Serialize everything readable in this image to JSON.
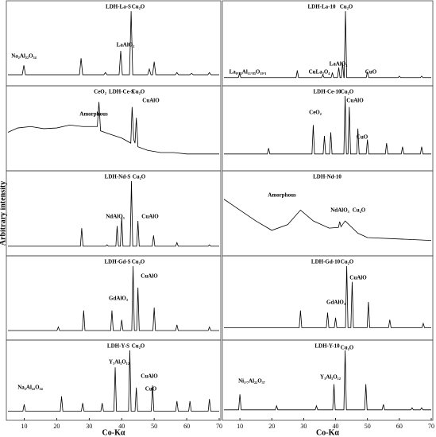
{
  "chart_data": [
    {
      "type": "line",
      "color": "#000000",
      "xlim": [
        5,
        70
      ],
      "ylim": [
        0,
        100
      ],
      "annotations": [
        "Na₂Al₂₂O₃₄",
        "LDH-La-S",
        "Cu₂O",
        "LaAlO₃"
      ],
      "x": [
        5,
        9.4,
        9.9,
        10.4,
        27,
        27.5,
        28,
        34.5,
        35,
        35.5,
        39.2,
        39.7,
        40.2,
        42.4,
        42.9,
        43.4,
        48,
        48.5,
        49,
        49.5,
        50,
        50.5,
        56.5,
        57,
        57.5,
        61,
        61.5,
        62,
        66.5,
        67,
        67.5,
        70
      ],
      "values": [
        12,
        12,
        25,
        12,
        12,
        35,
        12,
        12,
        15,
        12,
        12,
        45,
        12,
        12,
        100,
        12,
        12,
        20,
        12,
        12,
        30,
        12,
        12,
        15,
        12,
        12,
        14,
        12,
        12,
        15,
        12,
        12
      ]
    },
    {
      "type": "line",
      "color": "#000000",
      "xlim": [
        5,
        70
      ],
      "ylim": [
        0,
        100
      ],
      "annotations": [
        "LDH-La-10",
        "Cu₂O",
        "LaAlO₃",
        "La₀.₈₅Al₁₁.₈₅O₁₉.₁",
        "CuLa₂O₄",
        "CuO"
      ],
      "x": [
        5,
        9.5,
        9.9,
        10.3,
        27.6,
        28,
        28.4,
        35.6,
        36,
        36.4,
        38.6,
        39,
        39.4,
        40.6,
        41,
        41.4,
        41.8,
        42.2,
        42.6,
        42.7,
        43.1,
        43.5,
        49.6,
        50,
        50.4,
        59.6,
        60,
        60.4,
        66.6,
        67,
        67.4,
        70
      ],
      "values": [
        8,
        8,
        14,
        8,
        8,
        18,
        8,
        8,
        12,
        8,
        8,
        15,
        8,
        8,
        22,
        8,
        8,
        28,
        8,
        8,
        100,
        8,
        8,
        16,
        8,
        8,
        10,
        8,
        8,
        10,
        8,
        8
      ]
    },
    {
      "type": "line",
      "color": "#000000",
      "xlim": [
        5,
        70
      ],
      "ylim": [
        0,
        100
      ],
      "annotations": [
        "CeO₂",
        "LDH-Ce-S",
        "Cu₂O",
        "CuAlO",
        "Amorphous"
      ],
      "x": [
        5,
        8,
        12,
        16,
        20,
        24,
        28,
        32.5,
        33,
        33.5,
        36,
        40,
        42.8,
        43.2,
        43.7,
        44.1,
        44.5,
        45,
        48,
        52,
        56,
        60,
        65,
        70
      ],
      "values": [
        50,
        56,
        58,
        55,
        56,
        60,
        58,
        58,
        92,
        52,
        48,
        42,
        35,
        85,
        40,
        35,
        70,
        30,
        25,
        22,
        22,
        20,
        20,
        20
      ]
    },
    {
      "type": "line",
      "color": "#000000",
      "xlim": [
        5,
        70
      ],
      "ylim": [
        0,
        100
      ],
      "annotations": [
        "LDH-Ce-10",
        "Cu₂O",
        "CuAlO",
        "CeO₂",
        "CuO"
      ],
      "x": [
        5,
        18.6,
        19,
        19.4,
        32.6,
        33,
        33.4,
        36.1,
        36.5,
        36.9,
        38.1,
        38.5,
        38.9,
        42.6,
        43,
        43.4,
        43.9,
        44.3,
        44.7,
        46.6,
        47,
        47.4,
        49.6,
        50,
        50.4,
        55.6,
        56,
        56.4,
        60.6,
        61,
        61.4,
        66.6,
        67,
        67.4,
        70
      ],
      "values": [
        20,
        20,
        28,
        20,
        20,
        60,
        20,
        20,
        45,
        20,
        20,
        50,
        20,
        20,
        100,
        20,
        20,
        85,
        20,
        20,
        55,
        20,
        20,
        40,
        20,
        20,
        35,
        20,
        20,
        30,
        20,
        20,
        30,
        20,
        20
      ]
    },
    {
      "type": "line",
      "color": "#000000",
      "xlim": [
        5,
        70
      ],
      "ylim": [
        0,
        100
      ],
      "ylabel": "Arbitrary intensity",
      "annotations": [
        "LDH-Nd-S",
        "Cu₂O",
        "NdAlO₃",
        "CuAlO"
      ],
      "x": [
        5,
        27.3,
        27.7,
        28.1,
        35.1,
        35.5,
        35.9,
        38.2,
        38.6,
        39,
        39.6,
        40,
        40.4,
        42.6,
        43,
        43.4,
        44.6,
        45,
        45.4,
        49.4,
        49.8,
        50.2,
        56.6,
        57,
        57.4,
        66.6,
        67,
        67.4,
        70
      ],
      "values": [
        10,
        10,
        35,
        10,
        10,
        12,
        10,
        10,
        38,
        10,
        10,
        50,
        10,
        10,
        100,
        10,
        10,
        45,
        10,
        10,
        25,
        10,
        10,
        15,
        10,
        10,
        12,
        10,
        10
      ]
    },
    {
      "type": "line",
      "color": "#000000",
      "xlim": [
        5,
        70
      ],
      "ylim": [
        0,
        100
      ],
      "annotations": [
        "LDH-Nd-10",
        "Amorphous",
        "NdAlO₃",
        "Cu₂O"
      ],
      "x": [
        5,
        10,
        15,
        20,
        25,
        29,
        33,
        38,
        40.9,
        41.3,
        41.7,
        43,
        47,
        50,
        60,
        70
      ],
      "values": [
        75,
        60,
        45,
        32,
        40,
        60,
        45,
        35,
        36,
        44,
        37,
        45,
        28,
        22,
        20,
        18
      ]
    },
    {
      "type": "line",
      "color": "#000000",
      "xlim": [
        5,
        70
      ],
      "ylim": [
        0,
        100
      ],
      "annotations": [
        "LDH-Gd-S",
        "Cu₂O",
        "CuAlO",
        "GdAlO₃"
      ],
      "x": [
        5,
        20.1,
        20.5,
        20.9,
        27.9,
        28.3,
        28.7,
        36.6,
        37,
        37.4,
        39.6,
        40,
        40.4,
        43.1,
        43.5,
        43.9,
        44.6,
        45,
        45.4,
        49.6,
        50,
        50.4,
        56.6,
        57,
        57.4,
        66.6,
        67,
        67.4,
        70
      ],
      "values": [
        10,
        10,
        15,
        10,
        10,
        38,
        10,
        10,
        38,
        10,
        10,
        25,
        10,
        10,
        100,
        10,
        10,
        70,
        10,
        10,
        42,
        10,
        10,
        18,
        10,
        10,
        15,
        10,
        10
      ]
    },
    {
      "type": "line",
      "color": "#000000",
      "xlim": [
        5,
        70
      ],
      "ylim": [
        0,
        100
      ],
      "annotations": [
        "LDH-Gd-10",
        "Cu₂O",
        "CuAlO",
        "GdAlO₃"
      ],
      "x": [
        5,
        28.6,
        29,
        29.4,
        37.1,
        37.5,
        37.9,
        39.6,
        40,
        40.4,
        43.1,
        43.5,
        43.9,
        44.8,
        45.2,
        45.6,
        49.9,
        50.3,
        50.7,
        56.6,
        57,
        57.4,
        67.1,
        67.5,
        67.9,
        70
      ],
      "values": [
        14,
        14,
        38,
        14,
        14,
        35,
        14,
        14,
        28,
        14,
        14,
        100,
        14,
        14,
        78,
        14,
        14,
        50,
        14,
        14,
        25,
        14,
        14,
        20,
        14,
        14
      ]
    },
    {
      "type": "line",
      "color": "#000000",
      "xlim": [
        5,
        70
      ],
      "ylim": [
        0,
        100
      ],
      "xlabel": "Co-Kα",
      "xticks": [
        10,
        20,
        30,
        40,
        50,
        60,
        70
      ],
      "annotations": [
        "LDH-Y-S",
        "Cu₂O",
        "Y₃Al₅O₁₂",
        "CuAlO",
        "CuO",
        "Na₂Al₂₂O₃₄"
      ],
      "x": [
        5,
        9.6,
        10,
        10.4,
        21.1,
        21.5,
        21.9,
        27.6,
        28,
        28.4,
        33.6,
        34,
        34.4,
        37.6,
        38,
        38.4,
        42.1,
        42.5,
        42.9,
        44.1,
        44.5,
        44.9,
        49.1,
        49.5,
        49.9,
        56.6,
        57,
        57.4,
        60.6,
        61,
        61.4,
        66.6,
        67,
        67.4,
        70
      ],
      "values": [
        10,
        10,
        20,
        10,
        10,
        32,
        10,
        10,
        22,
        10,
        10,
        22,
        10,
        10,
        75,
        10,
        10,
        100,
        10,
        10,
        45,
        10,
        10,
        48,
        10,
        10,
        25,
        10,
        10,
        25,
        10,
        10,
        28,
        10,
        10
      ]
    },
    {
      "type": "line",
      "color": "#000000",
      "xlim": [
        5,
        70
      ],
      "ylim": [
        0,
        100
      ],
      "xlabel": "Co-Kα",
      "xticks": [
        10,
        20,
        30,
        40,
        50,
        60,
        70
      ],
      "annotations": [
        "LDH-Y-10",
        "Cu₂O",
        "Y₃Al₅O₁₂",
        "Ni₁.₇Al₂₂O₃₇"
      ],
      "x": [
        5,
        9.6,
        10,
        10.4,
        21.1,
        21.5,
        21.9,
        33.6,
        34,
        34.4,
        39.1,
        39.5,
        39.9,
        42.6,
        43,
        43.4,
        49.1,
        49.5,
        49.9,
        54.6,
        55,
        55.4,
        63.6,
        64,
        64.4,
        66.6,
        67,
        67.4,
        70
      ],
      "values": [
        12,
        12,
        35,
        12,
        12,
        18,
        12,
        12,
        18,
        12,
        12,
        50,
        12,
        12,
        100,
        12,
        12,
        50,
        12,
        12,
        20,
        12,
        12,
        15,
        12,
        12,
        15,
        12,
        12
      ]
    }
  ]
}
